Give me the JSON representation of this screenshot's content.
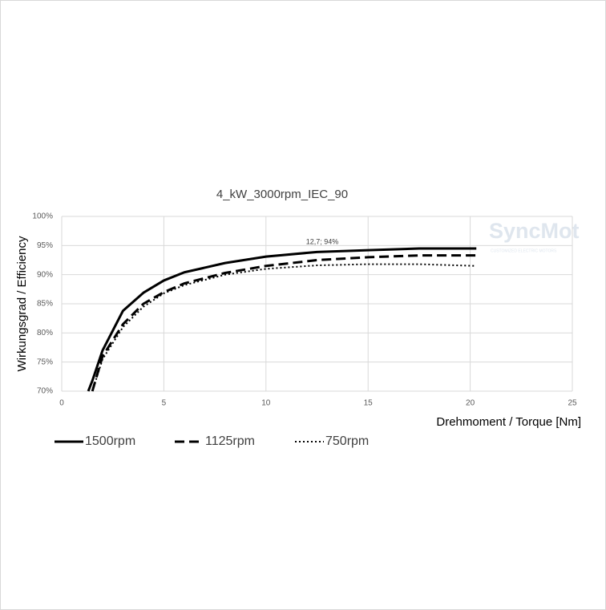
{
  "chart_data": {
    "type": "line",
    "title": "4_kW_3000rpm_IEC_90",
    "x_label": "Drehmoment / Torque [Nm]",
    "y_label": "Wirkungsgrad / Efficiency",
    "annotation": "12,7; 94%",
    "watermark": {
      "brand": "SyncMot",
      "tagline": "CUSTOMIZED ELECTRIC MOTORS"
    },
    "x": [
      1.3,
      1.5,
      2,
      3,
      4,
      5,
      6,
      8,
      10,
      12.5,
      15,
      17.5,
      20.3
    ],
    "series": [
      {
        "name": "1500rpm",
        "color": "#000000",
        "dash": "solid",
        "values": [
          70,
          71.8,
          77,
          83.8,
          86.9,
          89,
          90.4,
          92,
          93.1,
          93.9,
          94.2,
          94.5,
          94.5
        ]
      },
      {
        "name": "1125rpm",
        "color": "#000000",
        "dash": "dashed",
        "values": [
          null,
          70,
          76,
          81.5,
          85,
          87,
          88.5,
          90.3,
          91.5,
          92.5,
          93,
          93.3,
          93.3
        ]
      },
      {
        "name": "750rpm",
        "color": "#000000",
        "dash": "dotted",
        "values": [
          null,
          70,
          75.5,
          81,
          84.5,
          86.8,
          88.2,
          90,
          91,
          91.6,
          91.8,
          91.8,
          91.5
        ]
      }
    ],
    "xlim": [
      0,
      25
    ],
    "xticks": [
      0,
      5,
      10,
      15,
      20,
      25
    ],
    "ylim": [
      70,
      100
    ],
    "yticks": [
      {
        "value": 70,
        "label": "70%"
      },
      {
        "value": 75,
        "label": "75%"
      },
      {
        "value": 80,
        "label": "80%"
      },
      {
        "value": 85,
        "label": "85%"
      },
      {
        "value": 90,
        "label": "90%"
      },
      {
        "value": 95,
        "label": "95%"
      },
      {
        "value": 100,
        "label": "100%"
      }
    ],
    "grid": true,
    "legend": "bottom"
  }
}
